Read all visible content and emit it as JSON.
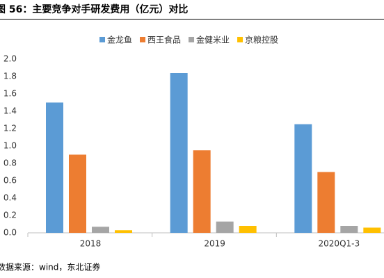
{
  "chart_data": {
    "type": "bar",
    "title": "图 56：主要竞争对手研发费用（亿元）对比",
    "source": "数据来源：wind，东北证券",
    "categories": [
      "2018",
      "2019",
      "2020Q1-3"
    ],
    "series": [
      {
        "name": "金龙鱼",
        "color": "#5b9bd5",
        "values": [
          1.5,
          1.84,
          1.25
        ]
      },
      {
        "name": "西王食品",
        "color": "#ed7d31",
        "values": [
          0.9,
          0.95,
          0.7
        ]
      },
      {
        "name": "金健米业",
        "color": "#a5a5a5",
        "values": [
          0.07,
          0.13,
          0.08
        ]
      },
      {
        "name": "京粮控股",
        "color": "#ffc000",
        "values": [
          0.03,
          0.08,
          0.06
        ]
      }
    ],
    "ylim": [
      0,
      2
    ],
    "yticks": [
      {
        "value": 0,
        "label": "0.0"
      },
      0.2,
      0.4,
      0.6,
      0.8,
      {
        "value": 1,
        "label": "1.0"
      },
      1.2,
      1.4,
      1.6,
      1.8,
      {
        "value": 2,
        "label": "2.0"
      }
    ],
    "grid": false
  }
}
